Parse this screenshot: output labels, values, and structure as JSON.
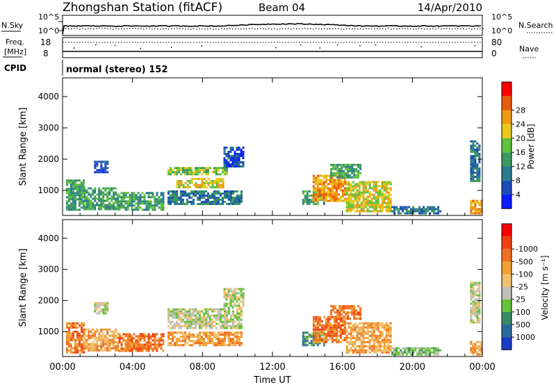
{
  "header": {
    "station": "Zhongshan Station (fitACF)",
    "beam": "Beam 04",
    "date": "14/Apr/2010"
  },
  "sky_panel": {
    "left_label": "N.Sky",
    "right_label": "N.Search",
    "left_ticks": [
      "10^5",
      "10^0"
    ],
    "right_ticks": [
      "10^5",
      "10^0"
    ]
  },
  "freq_panel": {
    "label_line1": "Freq.",
    "label_line2": "[MHz]",
    "right_label": "Nave",
    "left_ticks": [
      "18",
      "8"
    ],
    "right_ticks": [
      "80",
      "0"
    ]
  },
  "cpid": {
    "label": "CPID",
    "value": "normal (stereo) 152"
  },
  "chart_data": [
    {
      "type": "heatmap",
      "quantity": "Power",
      "ylabel": "Slant Range [km]",
      "yticks": [
        1000,
        2000,
        3000,
        4000
      ],
      "ylim": [
        200,
        4600
      ],
      "colorbar_label": "Power [dB]",
      "colorbar_ticks": [
        "4",
        "8",
        "12",
        "16",
        "20",
        "24",
        "28"
      ],
      "colorbar_colors": [
        "#0b1dff",
        "#1c4cb8",
        "#2a7a8e",
        "#3a9a5e",
        "#5ec23a",
        "#e8c81a",
        "#ee9a12",
        "#ea5a0c",
        "#ff0000"
      ],
      "regions": [
        {
          "t": [
            0.2,
            1.2
          ],
          "r": [
            350,
            1350
          ],
          "level": 3
        },
        {
          "t": [
            1.2,
            3.2
          ],
          "r": [
            400,
            1100
          ],
          "level": 3
        },
        {
          "t": [
            3.2,
            5.8
          ],
          "r": [
            350,
            950
          ],
          "level": 3
        },
        {
          "t": [
            1.8,
            2.6
          ],
          "r": [
            1550,
            1950
          ],
          "level": 1
        },
        {
          "t": [
            6.0,
            9.4
          ],
          "r": [
            1500,
            1750
          ],
          "level": 4
        },
        {
          "t": [
            6.5,
            9.2
          ],
          "r": [
            1100,
            1400
          ],
          "level": 5
        },
        {
          "t": [
            6.0,
            10.2
          ],
          "r": [
            550,
            1000
          ],
          "level": 2
        },
        {
          "t": [
            9.2,
            10.3
          ],
          "r": [
            1750,
            2400
          ],
          "level": 1
        },
        {
          "t": [
            13.7,
            15.0
          ],
          "r": [
            550,
            1000
          ],
          "level": 3
        },
        {
          "t": [
            14.3,
            16.2
          ],
          "r": [
            650,
            1500
          ],
          "level": 6
        },
        {
          "t": [
            15.3,
            17.0
          ],
          "r": [
            1400,
            1850
          ],
          "level": 3
        },
        {
          "t": [
            16.2,
            18.8
          ],
          "r": [
            350,
            1300
          ],
          "level": 5
        },
        {
          "t": [
            18.8,
            21.6
          ],
          "r": [
            250,
            500
          ],
          "level": 2
        },
        {
          "t": [
            23.3,
            24.0
          ],
          "r": [
            250,
            700
          ],
          "level": 6
        },
        {
          "t": [
            23.3,
            23.8
          ],
          "r": [
            1300,
            2600
          ],
          "level": 2
        }
      ]
    },
    {
      "type": "heatmap",
      "quantity": "Velocity",
      "ylabel": "Slant Range [km]",
      "yticks": [
        1000,
        2000,
        3000,
        4000
      ],
      "ylim": [
        200,
        4600
      ],
      "colorbar_label": "Velocity [m s⁻¹]",
      "colorbar_ticks": [
        "1000",
        "500",
        "100",
        "25",
        "-25",
        "-100",
        "-500",
        "-1000"
      ],
      "colorbar_colors": [
        "#1c3cc8",
        "#2a6a9a",
        "#3a8a66",
        "#66c23a",
        "#c0c0b8",
        "#f0c070",
        "#f0a030",
        "#f07020",
        "#f04010",
        "#ff0000"
      ],
      "regions": [
        {
          "t": [
            0.2,
            1.2
          ],
          "r": [
            350,
            1300
          ],
          "level": 7
        },
        {
          "t": [
            1.2,
            3.2
          ],
          "r": [
            400,
            1100
          ],
          "level": 6
        },
        {
          "t": [
            3.2,
            5.8
          ],
          "r": [
            350,
            950
          ],
          "level": 7
        },
        {
          "t": [
            1.8,
            2.6
          ],
          "r": [
            1550,
            1950
          ],
          "level": 4
        },
        {
          "t": [
            6.0,
            10.2
          ],
          "r": [
            1100,
            1750
          ],
          "level": 4
        },
        {
          "t": [
            6.0,
            10.2
          ],
          "r": [
            550,
            1000
          ],
          "level": 6
        },
        {
          "t": [
            9.2,
            10.3
          ],
          "r": [
            1750,
            2400
          ],
          "level": 4
        },
        {
          "t": [
            13.7,
            15.0
          ],
          "r": [
            550,
            1000
          ],
          "level": 2
        },
        {
          "t": [
            14.3,
            16.2
          ],
          "r": [
            650,
            1500
          ],
          "level": 7
        },
        {
          "t": [
            15.3,
            17.0
          ],
          "r": [
            1400,
            1850
          ],
          "level": 7
        },
        {
          "t": [
            16.2,
            18.8
          ],
          "r": [
            350,
            1300
          ],
          "level": 6
        },
        {
          "t": [
            18.8,
            21.6
          ],
          "r": [
            250,
            500
          ],
          "level": 3
        },
        {
          "t": [
            23.3,
            24.0
          ],
          "r": [
            250,
            700
          ],
          "level": 6
        },
        {
          "t": [
            23.3,
            23.8
          ],
          "r": [
            1300,
            2600
          ],
          "level": 4
        }
      ]
    }
  ],
  "xaxis": {
    "ticks": [
      "00:00",
      "04:00",
      "08:00",
      "12:00",
      "16:00",
      "20:00",
      "00:00"
    ],
    "label": "Time UT",
    "range_hours": [
      0,
      24
    ]
  }
}
